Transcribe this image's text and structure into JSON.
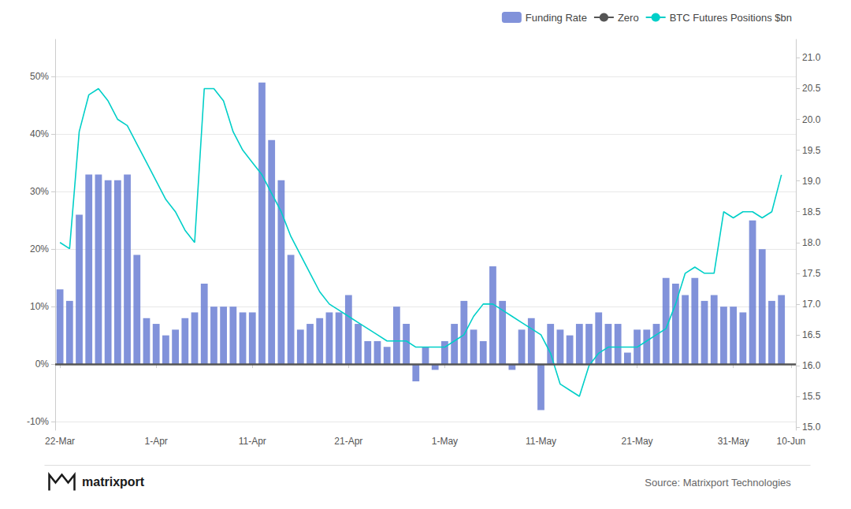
{
  "chart_data": {
    "type": "bar",
    "categories": [
      "22-Mar",
      null,
      null,
      null,
      null,
      null,
      null,
      null,
      null,
      null,
      "1-Apr",
      null,
      null,
      null,
      null,
      null,
      null,
      null,
      null,
      null,
      "11-Apr",
      null,
      null,
      null,
      null,
      null,
      null,
      null,
      null,
      null,
      "21-Apr",
      null,
      null,
      null,
      null,
      null,
      null,
      null,
      null,
      null,
      "1-May",
      null,
      null,
      null,
      null,
      null,
      null,
      null,
      null,
      null,
      "11-May",
      null,
      null,
      null,
      null,
      null,
      null,
      null,
      null,
      null,
      "21-May",
      null,
      null,
      null,
      null,
      null,
      null,
      null,
      null,
      null,
      "31-May",
      null,
      null,
      null,
      null,
      null,
      "10-Jun"
    ],
    "series": [
      {
        "name": "Funding Rate",
        "type": "bar",
        "color": "#6B7FD4",
        "values": [
          0.13,
          0.11,
          0.26,
          0.33,
          0.33,
          0.32,
          0.32,
          0.33,
          0.19,
          0.08,
          0.07,
          0.05,
          0.06,
          0.08,
          0.09,
          0.14,
          0.1,
          0.1,
          0.1,
          0.09,
          0.09,
          0.49,
          0.39,
          0.32,
          0.19,
          0.06,
          0.07,
          0.08,
          0.09,
          0.09,
          0.12,
          0.07,
          0.04,
          0.04,
          0.03,
          0.1,
          0.07,
          -0.03,
          0.03,
          -0.01,
          0.04,
          0.07,
          0.11,
          0.06,
          0.04,
          0.17,
          0.11,
          -0.01,
          0.06,
          0.08,
          -0.08,
          0.07,
          0.06,
          0.05,
          0.07,
          0.07,
          0.09,
          0.07,
          0.07,
          0.02,
          0.06,
          0.06,
          0.07,
          0.15,
          0.14,
          0.12,
          0.15,
          0.11,
          0.12,
          0.1,
          0.1,
          0.09,
          0.25,
          0.2,
          0.11,
          0.12,
          null
        ]
      },
      {
        "name": "Zero",
        "type": "hline",
        "y": 0,
        "color": "#555555"
      },
      {
        "name": "BTC Futures Positions $bn",
        "type": "line",
        "axis": "y2",
        "color": "#00CFC8",
        "values": [
          18.0,
          17.9,
          19.8,
          20.4,
          20.5,
          20.3,
          20.0,
          19.9,
          19.6,
          19.3,
          19.0,
          18.7,
          18.5,
          18.2,
          18.0,
          20.5,
          20.5,
          20.3,
          19.8,
          19.5,
          19.3,
          19.1,
          18.8,
          18.5,
          18.1,
          17.8,
          17.5,
          17.2,
          17.0,
          16.9,
          16.8,
          16.7,
          16.6,
          16.5,
          16.4,
          16.4,
          16.4,
          16.3,
          16.3,
          16.3,
          16.3,
          16.4,
          16.5,
          16.8,
          17.0,
          17.0,
          16.9,
          16.8,
          16.7,
          16.6,
          16.5,
          16.2,
          15.7,
          15.6,
          15.5,
          16.0,
          16.2,
          16.3,
          16.3,
          16.3,
          16.3,
          16.4,
          16.5,
          16.6,
          17.0,
          17.5,
          17.6,
          17.5,
          17.5,
          18.5,
          18.4,
          18.5,
          18.5,
          18.4,
          18.5,
          19.1,
          null
        ]
      }
    ],
    "ylim": [
      -0.115,
      0.565
    ],
    "yticks": [
      {
        "value": -0.1,
        "label": "-10%"
      },
      {
        "value": 0.0,
        "label": "0%"
      },
      {
        "value": 0.1,
        "label": "10%"
      },
      {
        "value": 0.2,
        "label": "20%"
      },
      {
        "value": 0.3,
        "label": "30%"
      },
      {
        "value": 0.4,
        "label": "40%"
      },
      {
        "value": 0.5,
        "label": "50%"
      }
    ],
    "y2lim": [
      14.95,
      21.3
    ],
    "y2ticks": [
      {
        "value": 15.0,
        "label": "15.0"
      },
      {
        "value": 15.5,
        "label": "15.5"
      },
      {
        "value": 16.0,
        "label": "16.0"
      },
      {
        "value": 16.5,
        "label": "16.5"
      },
      {
        "value": 17.0,
        "label": "17.0"
      },
      {
        "value": 17.5,
        "label": "17.5"
      },
      {
        "value": 18.0,
        "label": "18.0"
      },
      {
        "value": 18.5,
        "label": "18.5"
      },
      {
        "value": 19.0,
        "label": "19.0"
      },
      {
        "value": 19.5,
        "label": "19.5"
      },
      {
        "value": 20.0,
        "label": "20.0"
      },
      {
        "value": 20.5,
        "label": "20.5"
      },
      {
        "value": 21.0,
        "label": "21.0"
      }
    ],
    "grid": true,
    "legend": "upper right",
    "annotations": [
      "matrixport",
      "Source: Matrixport Technologies"
    ]
  }
}
